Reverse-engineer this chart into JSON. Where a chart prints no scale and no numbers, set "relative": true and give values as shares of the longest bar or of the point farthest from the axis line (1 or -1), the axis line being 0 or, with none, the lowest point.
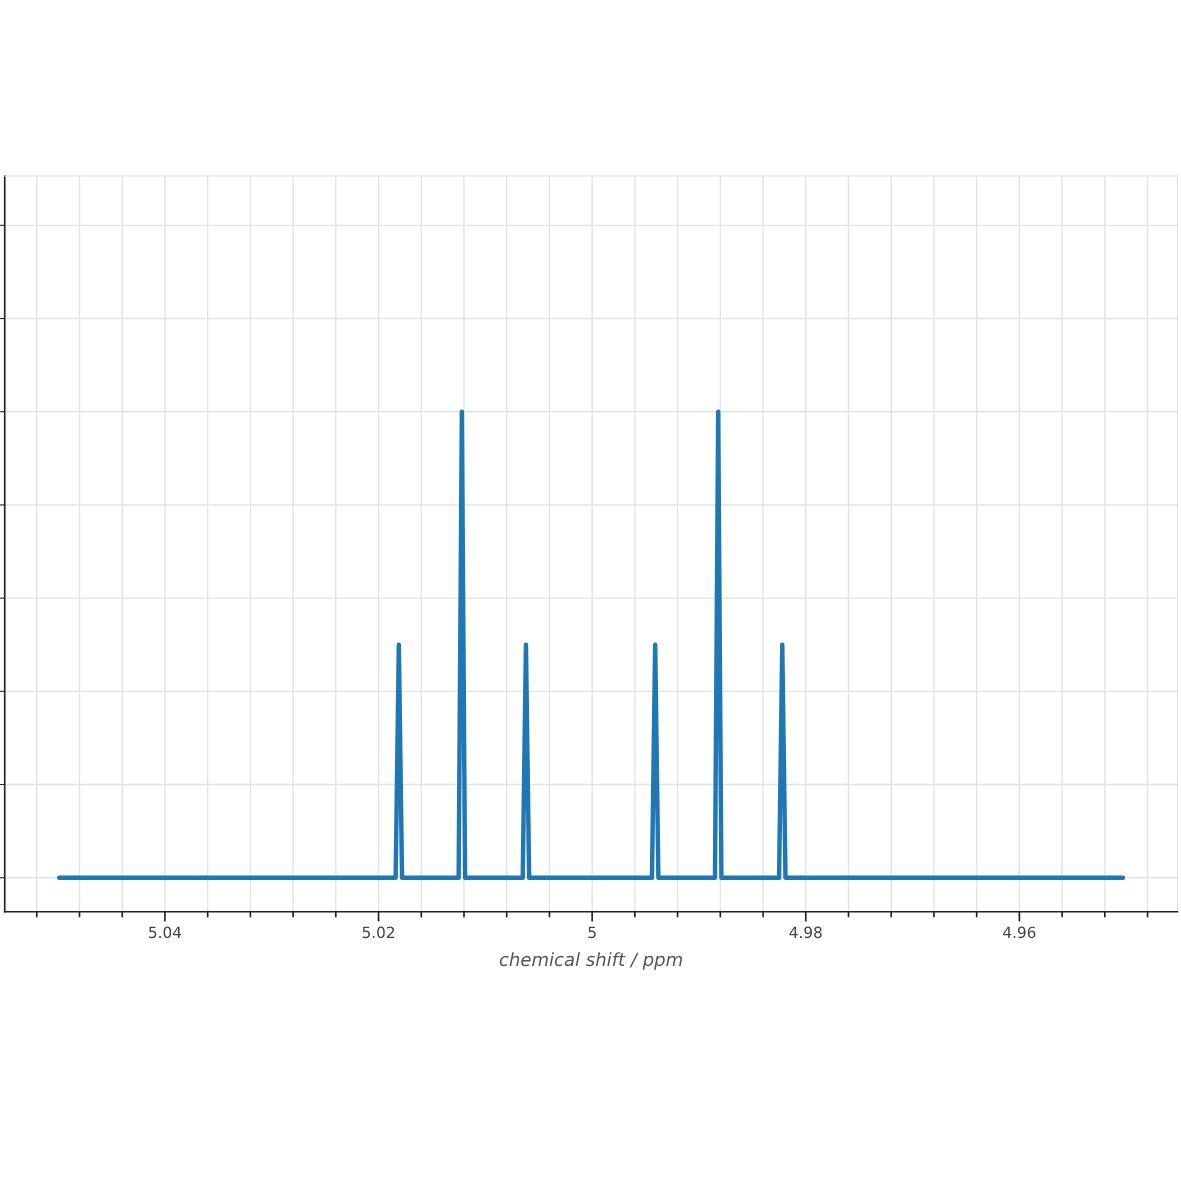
{
  "chart_data": {
    "type": "line",
    "xlabel": "chemical shift / ppm",
    "relative": true,
    "grid": true,
    "marker": "none",
    "line_style": "solid",
    "xlim": [
      5.055,
      4.9452
    ],
    "xticks": [
      {
        "value": 5.052,
        "label": null
      },
      {
        "value": 5.048,
        "label": null
      },
      {
        "value": 5.044,
        "label": null
      },
      {
        "value": 5.04,
        "label": "5.04"
      },
      {
        "value": 5.036,
        "label": null
      },
      {
        "value": 5.032,
        "label": null
      },
      {
        "value": 5.028,
        "label": null
      },
      {
        "value": 5.024,
        "label": null
      },
      {
        "value": 5.02,
        "label": "5.02"
      },
      {
        "value": 5.016,
        "label": null
      },
      {
        "value": 5.012,
        "label": null
      },
      {
        "value": 5.008,
        "label": null
      },
      {
        "value": 5.004,
        "label": null
      },
      {
        "value": 5,
        "label": "5"
      },
      {
        "value": 4.996,
        "label": null
      },
      {
        "value": 4.992,
        "label": null
      },
      {
        "value": 4.988,
        "label": null
      },
      {
        "value": 4.984,
        "label": null
      },
      {
        "value": 4.98,
        "label": "4.98"
      },
      {
        "value": 4.976,
        "label": null
      },
      {
        "value": 4.972,
        "label": null
      },
      {
        "value": 4.968,
        "label": null
      },
      {
        "value": 4.964,
        "label": null
      },
      {
        "value": 4.96,
        "label": "4.96"
      },
      {
        "value": 4.956,
        "label": null
      },
      {
        "value": 4.952,
        "label": null
      },
      {
        "value": 4.948,
        "label": null
      }
    ],
    "series": [
      {
        "color": "#1f77b4",
        "x": [
          5.0499,
          5.0184,
          5.0181,
          5.0178,
          5.0125,
          5.0122,
          5.0119,
          5.0065,
          5.0062,
          5.0059,
          4.9944,
          4.9941,
          4.9938,
          4.9885,
          4.9882,
          4.9879,
          4.9825,
          4.9822,
          4.9819,
          4.9503
        ],
        "values": [
          0,
          0,
          0.5,
          0,
          0,
          1,
          0,
          0,
          0.5,
          0,
          0,
          0.5,
          0,
          0,
          1,
          0,
          0,
          0.5,
          0,
          0
        ]
      }
    ]
  }
}
